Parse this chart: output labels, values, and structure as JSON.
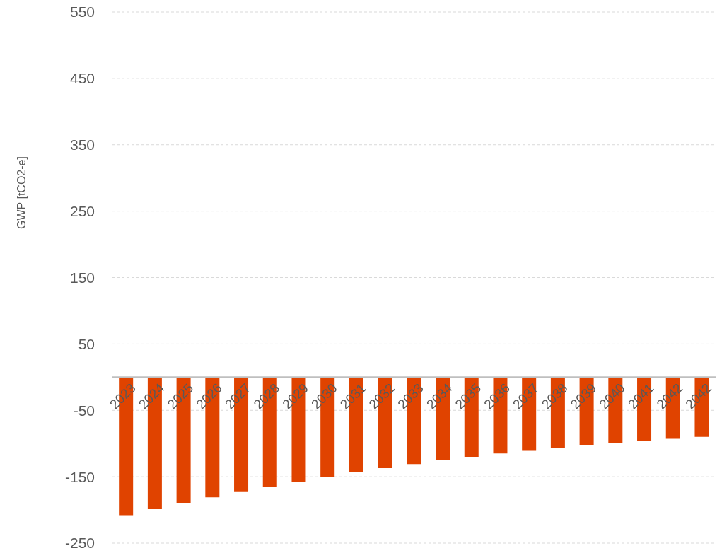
{
  "chart_data": {
    "type": "bar",
    "ylabel": "GWP [tCO2-e]",
    "categories": [
      "2023",
      "2024",
      "2025",
      "2026",
      "2027",
      "2028",
      "2029",
      "2030",
      "2031",
      "2032",
      "2033",
      "2034",
      "2035",
      "2036",
      "2037",
      "2038",
      "2039",
      "2040",
      "2041",
      "2042",
      "2042"
    ],
    "values": [
      -208,
      -199,
      -190,
      -181,
      -173,
      -165,
      -158,
      -150,
      -143,
      -137,
      -131,
      -125,
      -120,
      -115,
      -111,
      -107,
      -102,
      -99,
      -96,
      -93,
      -90
    ],
    "color": "#e04300",
    "ylim": [
      -250,
      550
    ],
    "yticks": [
      -250,
      -150,
      -50,
      50,
      150,
      250,
      350,
      450,
      550
    ],
    "grid": "y",
    "legend": false
  }
}
